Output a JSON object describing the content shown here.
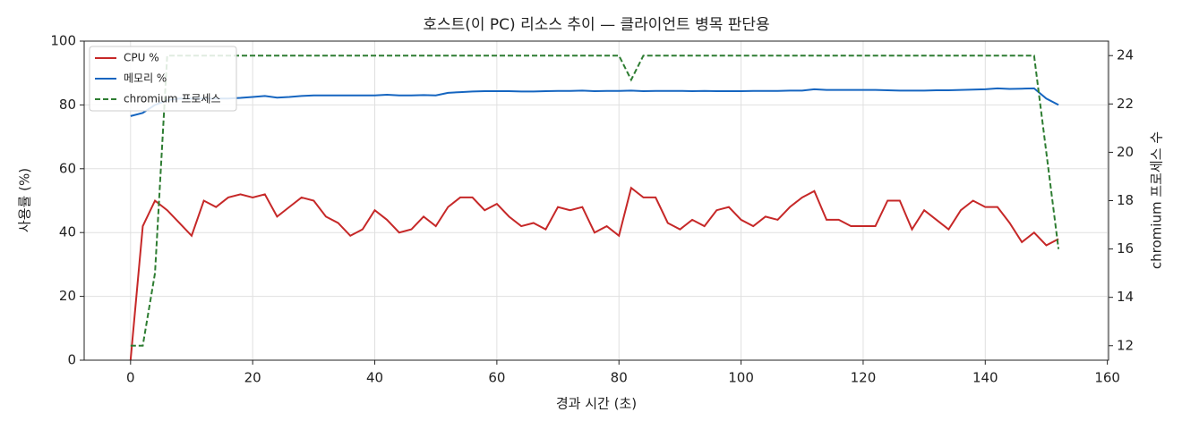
{
  "chart_data": {
    "type": "line",
    "title": "호스트(이 PC) 리소스 추이 — 클라이언트 병목 판단용",
    "x_label": "경과 시간 (초)",
    "y_label": "사용률 (%)",
    "y2_label": "chromium 프로세스 수",
    "x": [
      0,
      2,
      4,
      6,
      8,
      10,
      12,
      14,
      16,
      18,
      20,
      22,
      24,
      26,
      28,
      30,
      32,
      34,
      36,
      38,
      40,
      42,
      44,
      46,
      48,
      50,
      52,
      54,
      56,
      58,
      60,
      62,
      64,
      66,
      68,
      70,
      72,
      74,
      76,
      78,
      80,
      82,
      84,
      86,
      88,
      90,
      92,
      94,
      96,
      98,
      100,
      102,
      104,
      106,
      108,
      110,
      112,
      114,
      116,
      118,
      120,
      122,
      124,
      126,
      128,
      130,
      132,
      134,
      136,
      138,
      140,
      142,
      144,
      146,
      148,
      150,
      152
    ],
    "series": [
      {
        "name": "CPU %",
        "color": "#c62828",
        "dash": false,
        "values": [
          0,
          42,
          50,
          47,
          43,
          39,
          50,
          48,
          51,
          52,
          51,
          52,
          45,
          48,
          51,
          50,
          45,
          43,
          39,
          41,
          47,
          44,
          40,
          41,
          45,
          42,
          48,
          51,
          51,
          47,
          49,
          45,
          42,
          43,
          41,
          48,
          47,
          48,
          40,
          42,
          39,
          54,
          51,
          51,
          43,
          41,
          44,
          42,
          47,
          48,
          44,
          42,
          45,
          44,
          48,
          51,
          53,
          44,
          44,
          42,
          42,
          42,
          50,
          50,
          41,
          47,
          44,
          41,
          47,
          50,
          48,
          48,
          43,
          37,
          40,
          36,
          38
        ]
      },
      {
        "name": "메모리 %",
        "color": "#1565c0",
        "dash": false,
        "values": [
          76.5,
          77.5,
          80,
          81.5,
          82,
          82,
          82,
          82,
          82,
          82.2,
          82.5,
          82.8,
          82.3,
          82.5,
          82.8,
          83,
          83,
          83,
          83,
          83,
          83,
          83.2,
          83,
          83,
          83.1,
          83,
          83.8,
          84,
          84.2,
          84.3,
          84.3,
          84.3,
          84.2,
          84.2,
          84.3,
          84.4,
          84.4,
          84.5,
          84.3,
          84.4,
          84.4,
          84.5,
          84.3,
          84.4,
          84.4,
          84.4,
          84.3,
          84.4,
          84.3,
          84.3,
          84.3,
          84.4,
          84.4,
          84.4,
          84.5,
          84.5,
          84.9,
          84.7,
          84.7,
          84.7,
          84.7,
          84.7,
          84.6,
          84.5,
          84.5,
          84.5,
          84.6,
          84.6,
          84.7,
          84.8,
          84.9,
          85.2,
          85,
          85.1,
          85.2,
          82,
          80
        ]
      },
      {
        "name": "chromium 프로세스",
        "color": "#2e7d32",
        "dash": true,
        "axis": "y2",
        "values": [
          12,
          12,
          15,
          24,
          24,
          24,
          24,
          24,
          24,
          24,
          24,
          24,
          24,
          24,
          24,
          24,
          24,
          24,
          24,
          24,
          24,
          24,
          24,
          24,
          24,
          24,
          24,
          24,
          24,
          24,
          24,
          24,
          24,
          24,
          24,
          24,
          24,
          24,
          24,
          24,
          24,
          23,
          24,
          24,
          24,
          24,
          24,
          24,
          24,
          24,
          24,
          24,
          24,
          24,
          24,
          24,
          24,
          24,
          24,
          24,
          24,
          24,
          24,
          24,
          24,
          24,
          24,
          24,
          24,
          24,
          24,
          24,
          24,
          24,
          24,
          20,
          16
        ]
      }
    ],
    "xlim": [
      -7.6,
      160.2
    ],
    "xticks": [
      0,
      20,
      40,
      60,
      80,
      100,
      120,
      140,
      160
    ],
    "ylim": [
      0,
      100
    ],
    "yticks": [
      0,
      20,
      40,
      60,
      80,
      100
    ],
    "y2lim": [
      11.4,
      24.6
    ],
    "y2ticks": [
      12,
      14,
      16,
      18,
      20,
      22,
      24
    ],
    "grid": true,
    "legend": "upper left"
  }
}
